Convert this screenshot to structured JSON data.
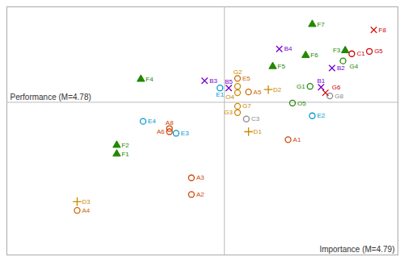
{
  "chart_data": {
    "type": "scatter",
    "xlabel": "Importance (M=4.79)",
    "ylabel": "Performance (M=4.78)",
    "xlim": [
      4.295,
      5.185
    ],
    "ylim": [
      3.82,
      5.38
    ],
    "xticks": [],
    "yticks": [],
    "tick_labels": false,
    "grid": false,
    "x_mean": 4.79,
    "y_mean": 4.78,
    "labels": [
      "A1",
      "A2",
      "A3",
      "A4",
      "A5",
      "A6",
      "A8",
      "B1",
      "B2",
      "B3",
      "B4",
      "B5",
      "C1",
      "C3",
      "D1",
      "D2",
      "D3",
      "E1",
      "E2",
      "E3",
      "E4",
      "E5",
      "F1",
      "F2",
      "F3",
      "F4",
      "F5",
      "F6",
      "F7",
      "F8",
      "G1",
      "G2",
      "G3",
      "G4",
      "G5",
      "G6",
      "G7",
      "G8",
      "O4",
      "O5"
    ],
    "x": [
      4.935,
      4.715,
      4.715,
      4.455,
      4.845,
      4.665,
      4.665,
      5.01,
      5.035,
      4.745,
      4.915,
      4.8,
      5.08,
      4.84,
      4.845,
      4.89,
      4.455,
      4.78,
      4.99,
      4.68,
      4.605,
      4.82,
      4.545,
      4.545,
      5.065,
      4.6,
      4.9,
      4.975,
      4.99,
      5.13,
      4.985,
      4.82,
      4.82,
      5.06,
      5.12,
      5.02,
      4.82,
      5.03,
      4.82,
      4.945
    ],
    "values": [
      4.545,
      4.2,
      4.305,
      4.1,
      4.845,
      4.595,
      4.615,
      4.875,
      4.995,
      4.915,
      5.115,
      4.87,
      5.085,
      4.675,
      4.595,
      4.86,
      4.155,
      4.87,
      4.695,
      4.585,
      4.66,
      4.93,
      4.455,
      4.51,
      5.105,
      4.925,
      5.005,
      5.075,
      5.27,
      5.235,
      4.88,
      4.88,
      4.715,
      5.04,
      5.1,
      4.84,
      4.755,
      4.82,
      4.84,
      4.775
    ],
    "colors": [
      "#cc4400",
      "#cc4400",
      "#cc4400",
      "#cc6600",
      "#cc6600",
      "#cc4400",
      "#cc4400",
      "#7700cc",
      "#7700cc",
      "#7700cc",
      "#7700cc",
      "#7700cc",
      "#cc0000",
      "#888888",
      "#cc8800",
      "#cc8800",
      "#cc8800",
      "#0099cc",
      "#0099cc",
      "#0099cc",
      "#0099cc",
      "#cc6600",
      "#228800",
      "#228800",
      "#228800",
      "#228800",
      "#228800",
      "#228800",
      "#228800",
      "#cc0000",
      "#228800",
      "#cc8800",
      "#cc8800",
      "#228800",
      "#cc0000",
      "#cc0000",
      "#cc8800",
      "#888888",
      "#cc8800",
      "#228800"
    ],
    "markers": [
      "o",
      "o",
      "o",
      "o",
      "o",
      "o",
      "o",
      "x",
      "x",
      "x",
      "x",
      "x",
      "o",
      "o",
      "+",
      "+",
      "+",
      "o",
      "o",
      "o",
      "o",
      "o",
      "^",
      "^",
      "^",
      "^",
      "^",
      "^",
      "^",
      "x",
      "o",
      "o",
      "o",
      "o",
      "o",
      "x",
      "o",
      "o",
      "o",
      "o"
    ]
  }
}
